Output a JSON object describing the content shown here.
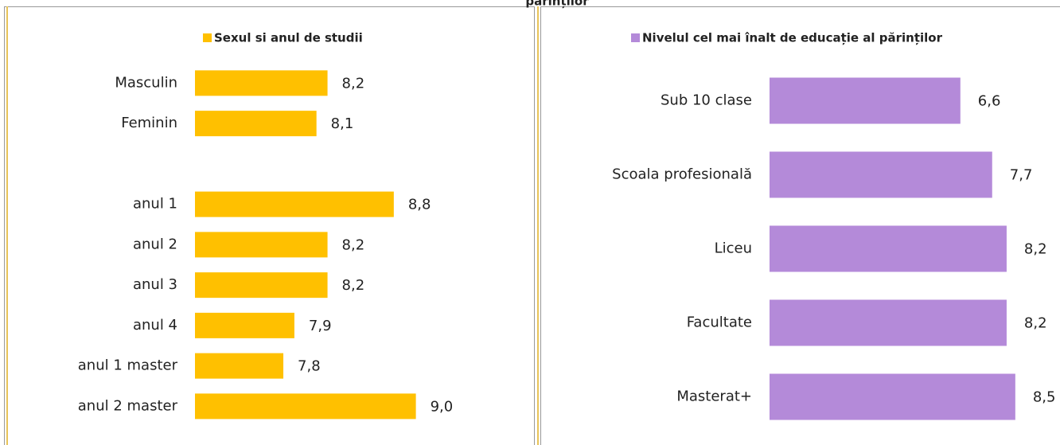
{
  "header": {
    "title": "părinților"
  },
  "chart_data": [
    {
      "type": "bar",
      "orientation": "horizontal",
      "legend": "Sexul si anul de studii",
      "color": "#ffc000",
      "categories": [
        "Masculin",
        "Feminin",
        null,
        "anul 1",
        "anul 2",
        "anul 3",
        "anul 4",
        "anul 1 master",
        "anul 2 master"
      ],
      "values": [
        8.2,
        8.1,
        null,
        8.8,
        8.2,
        8.2,
        7.9,
        7.8,
        9.0
      ],
      "value_labels": [
        "8,2",
        "8,1",
        null,
        "8,8",
        "8,2",
        "8,2",
        "7,9",
        "7,8",
        "9,0"
      ],
      "xlim": [
        7,
        9.5
      ]
    },
    {
      "type": "bar",
      "orientation": "horizontal",
      "legend": "Nivelul cel mai înalt de educație al părinților",
      "color": "#b48ad9",
      "categories": [
        "Sub 10 clase",
        "Scoala profesională",
        "Liceu",
        "Facultate",
        "Masterat+"
      ],
      "values": [
        6.6,
        7.7,
        8.2,
        8.2,
        8.5
      ],
      "value_labels": [
        "6,6",
        "7,7",
        "8,2",
        "8,2",
        "8,5"
      ],
      "xlim": [
        0,
        9
      ]
    }
  ]
}
